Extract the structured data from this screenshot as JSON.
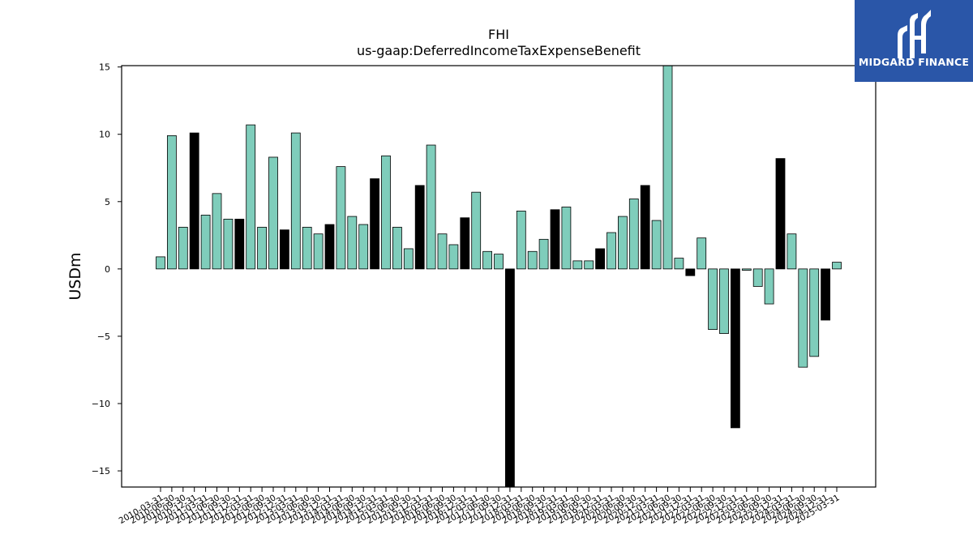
{
  "brand": {
    "name": "MIDGARD FINANCE",
    "icon": "mf-logo-icon",
    "bg_color": "#2a56a8"
  },
  "chart_data": {
    "type": "bar",
    "title": "FHI",
    "subtitle": "us-gaap:DeferredIncomeTaxExpenseBenefit",
    "xlabel": "",
    "ylabel": "USDm",
    "ylim": [
      -16.2,
      15.1
    ],
    "yticks": [
      -15,
      -10,
      -5,
      0,
      5,
      10,
      15
    ],
    "ytick_labels": [
      "−15",
      "−10",
      "−5",
      "0",
      "5",
      "10",
      "15"
    ],
    "grid": false,
    "legend": "none",
    "colors": {
      "quarter": "#7fcdbb",
      "annual": "#000000",
      "edge": "#000000"
    },
    "categories": [
      "2010-03-31",
      "2010-06-30",
      "2010-09-30",
      "2010-12-31",
      "2011-03-31",
      "2011-06-30",
      "2011-09-30",
      "2011-12-31",
      "2012-03-31",
      "2012-06-30",
      "2012-09-30",
      "2012-12-31",
      "2013-03-31",
      "2013-06-30",
      "2013-09-30",
      "2013-12-31",
      "2014-03-31",
      "2014-06-30",
      "2014-09-30",
      "2014-12-31",
      "2015-03-31",
      "2015-06-30",
      "2015-09-30",
      "2015-12-31",
      "2016-03-31",
      "2016-06-30",
      "2016-09-30",
      "2016-12-31",
      "2017-03-31",
      "2017-06-30",
      "2017-09-30",
      "2017-12-31",
      "2018-03-31",
      "2018-06-30",
      "2018-09-30",
      "2018-12-31",
      "2019-03-31",
      "2019-06-30",
      "2019-09-30",
      "2019-12-31",
      "2020-03-31",
      "2020-06-30",
      "2020-09-30",
      "2020-12-31",
      "2021-03-31",
      "2021-06-30",
      "2021-09-30",
      "2021-12-31",
      "2022-03-31",
      "2022-06-30",
      "2022-09-30",
      "2022-12-31",
      "2023-03-31",
      "2023-06-30",
      "2023-09-30",
      "2023-12-31",
      "2024-03-31",
      "2024-06-30",
      "2024-09-30",
      "2024-12-31",
      "2025-03-31"
    ],
    "values": [
      0.9,
      9.9,
      3.1,
      10.1,
      4.0,
      5.6,
      3.7,
      3.7,
      10.7,
      3.1,
      8.3,
      2.9,
      10.1,
      3.1,
      2.6,
      3.3,
      7.6,
      3.9,
      3.3,
      6.7,
      8.4,
      3.1,
      1.5,
      6.2,
      9.2,
      2.6,
      1.8,
      3.8,
      5.7,
      1.3,
      1.1,
      -16.2,
      4.3,
      1.3,
      2.2,
      4.4,
      4.6,
      0.6,
      0.6,
      1.5,
      2.7,
      3.9,
      5.2,
      6.2,
      3.6,
      15.1,
      0.8,
      -0.5,
      2.3,
      -4.5,
      -4.8,
      -11.8,
      -0.1,
      -1.3,
      -2.6,
      8.2,
      2.6,
      -7.3,
      -6.5,
      -3.8,
      0.5
    ],
    "annual": [
      false,
      false,
      false,
      true,
      false,
      false,
      false,
      true,
      false,
      false,
      false,
      true,
      false,
      false,
      false,
      true,
      false,
      false,
      false,
      true,
      false,
      false,
      false,
      true,
      false,
      false,
      false,
      true,
      false,
      false,
      false,
      true,
      false,
      false,
      false,
      true,
      false,
      false,
      false,
      true,
      false,
      false,
      false,
      true,
      false,
      false,
      false,
      true,
      false,
      false,
      false,
      true,
      false,
      false,
      false,
      true,
      false,
      false,
      false,
      true,
      false
    ]
  }
}
